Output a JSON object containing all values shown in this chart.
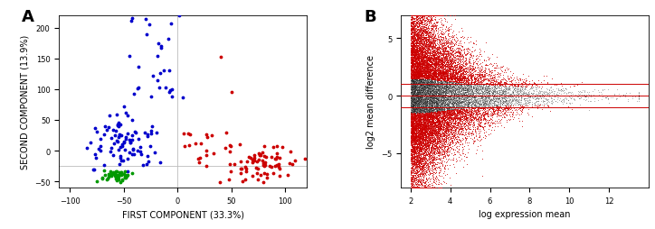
{
  "panel_A": {
    "label": "A",
    "xlabel": "FIRST COMPONENT (33.3%)",
    "ylabel": "SECOND COMPONENT (13.9%)",
    "xlim": [
      -110,
      120
    ],
    "ylim": [
      -60,
      220
    ],
    "xticks": [
      -100,
      -50,
      0,
      50,
      100
    ],
    "yticks": [
      -50,
      0,
      50,
      100,
      150,
      200
    ],
    "vline_x": 0,
    "hline_y": -25,
    "blue_color": "#0000cc",
    "red_color": "#cc0000",
    "green_color": "#009900",
    "ref_line_color": "#bbbbbb",
    "marker_size": 3
  },
  "panel_B": {
    "label": "B",
    "xlabel": "log expression mean",
    "ylabel": "log2 mean difference",
    "xlim": [
      1.5,
      14
    ],
    "ylim": [
      -8,
      7
    ],
    "xticks": [
      2,
      4,
      6,
      8,
      10,
      12
    ],
    "yticks": [
      -5,
      0,
      5
    ],
    "hlines": [
      0.0,
      1.0,
      -1.0
    ],
    "hline_color": "#cc0000",
    "black_color": "#222222",
    "red_color": "#cc0000"
  }
}
